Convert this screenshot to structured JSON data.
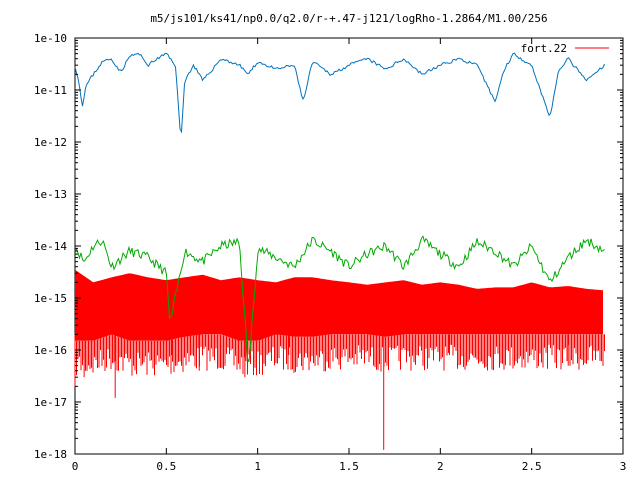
{
  "chart_data": {
    "type": "line",
    "title": "m5/js101/ks41/np0.0/q2.0/r-+.47-j121/logRho-1.2864/M1.00/256",
    "xlabel": "",
    "ylabel": "",
    "xlim": [
      0,
      3
    ],
    "ylim": [
      1e-18,
      1e-10
    ],
    "yscale": "log",
    "grid": false,
    "legend_position": "top-right",
    "x_ticks": [
      "0",
      "0.5",
      "1",
      "1.5",
      "2",
      "2.5",
      "3"
    ],
    "y_ticks": [
      "1e-10",
      "1e-11",
      "1e-12",
      "1e-13",
      "1e-14",
      "1e-15",
      "1e-16",
      "1e-17",
      "1e-18"
    ],
    "series": [
      {
        "legend_label": "",
        "color": "#0072bd",
        "x": [
          0.0,
          0.02,
          0.04,
          0.06,
          0.1,
          0.15,
          0.2,
          0.25,
          0.3,
          0.35,
          0.4,
          0.45,
          0.5,
          0.55,
          0.58,
          0.6,
          0.65,
          0.7,
          0.8,
          0.9,
          0.95,
          1.0,
          1.1,
          1.2,
          1.25,
          1.3,
          1.4,
          1.5,
          1.6,
          1.7,
          1.8,
          1.9,
          2.0,
          2.1,
          2.2,
          2.3,
          2.35,
          2.4,
          2.5,
          2.6,
          2.65,
          2.7,
          2.8,
          2.9
        ],
        "y": [
          3e-11,
          1.5e-11,
          5e-12,
          1.2e-11,
          2e-11,
          3.5e-11,
          4e-11,
          2.2e-11,
          4.5e-11,
          5e-11,
          3e-11,
          4e-11,
          5e-11,
          3e-11,
          1e-12,
          1.5e-11,
          3e-11,
          1.5e-11,
          4e-11,
          3e-11,
          2e-11,
          3.5e-11,
          2.5e-11,
          3e-11,
          6e-12,
          3.5e-11,
          2e-11,
          3e-11,
          4e-11,
          2.5e-11,
          4e-11,
          2e-11,
          3e-11,
          4e-11,
          3e-11,
          6e-12,
          2.5e-11,
          5e-11,
          3e-11,
          3e-12,
          2.5e-11,
          4e-11,
          1.5e-11,
          3e-11
        ]
      },
      {
        "legend_label": "",
        "color": "#00aa00",
        "x": [
          0.0,
          0.05,
          0.1,
          0.15,
          0.2,
          0.3,
          0.4,
          0.5,
          0.52,
          0.6,
          0.7,
          0.8,
          0.9,
          0.95,
          1.0,
          1.1,
          1.2,
          1.3,
          1.4,
          1.5,
          1.6,
          1.7,
          1.8,
          1.9,
          2.0,
          2.1,
          2.2,
          2.3,
          2.4,
          2.5,
          2.6,
          2.7,
          2.8,
          2.9
        ],
        "y": [
          1e-14,
          5e-15,
          1e-14,
          1.3e-14,
          4e-15,
          8e-15,
          6e-15,
          3e-15,
          3e-16,
          8e-15,
          5e-15,
          1e-14,
          1.2e-14,
          4e-17,
          9e-15,
          6e-15,
          4e-15,
          1.3e-14,
          8e-15,
          4e-15,
          7e-15,
          1e-14,
          4e-15,
          1.3e-14,
          7e-15,
          4e-15,
          1.2e-14,
          8e-15,
          4e-15,
          1e-14,
          2e-15,
          6e-15,
          1.3e-14,
          8e-15
        ]
      },
      {
        "legend_label": "fort.22",
        "color": "#ff0000",
        "band_x": [
          0.0,
          0.1,
          0.2,
          0.3,
          0.4,
          0.5,
          0.6,
          0.7,
          0.8,
          0.9,
          1.0,
          1.1,
          1.2,
          1.3,
          1.4,
          1.5,
          1.6,
          1.7,
          1.8,
          1.9,
          2.0,
          2.1,
          2.2,
          2.3,
          2.4,
          2.5,
          2.6,
          2.7,
          2.8,
          2.9
        ],
        "band_upper": [
          3.5e-15,
          2e-15,
          2.5e-15,
          3e-15,
          2.5e-15,
          2.2e-15,
          2.5e-15,
          2.8e-15,
          2.2e-15,
          2.5e-15,
          2.2e-15,
          2e-15,
          2.5e-15,
          2.5e-15,
          2.2e-15,
          2e-15,
          1.8e-15,
          2e-15,
          2.2e-15,
          1.8e-15,
          2e-15,
          1.8e-15,
          1.5e-15,
          1.6e-15,
          1.6e-15,
          2e-15,
          1.6e-15,
          1.7e-15,
          1.5e-15,
          1.4e-15
        ],
        "band_lower": [
          1.5e-16,
          1.5e-16,
          2e-16,
          1.5e-16,
          1.5e-16,
          1.5e-16,
          1.8e-16,
          2e-16,
          2e-16,
          1.5e-16,
          1.5e-16,
          2e-16,
          1.8e-16,
          1.8e-16,
          2e-16,
          2e-16,
          2e-16,
          1.8e-16,
          2e-16,
          2e-16,
          2e-16,
          2e-16,
          2e-16,
          2e-16,
          2e-16,
          2e-16,
          2e-16,
          2e-16,
          2e-16,
          2e-16
        ],
        "dips_x": [
          0.0,
          0.05,
          0.22,
          0.53,
          0.68,
          0.93,
          1.17,
          1.69,
          2.05,
          2.25,
          2.48,
          2.7
        ],
        "dips_y": [
          2e-17,
          3e-17,
          1.2e-17,
          8e-17,
          4e-17,
          3e-17,
          8e-17,
          1.2e-18,
          8e-17,
          6e-17,
          7e-17,
          5e-17
        ]
      }
    ]
  }
}
